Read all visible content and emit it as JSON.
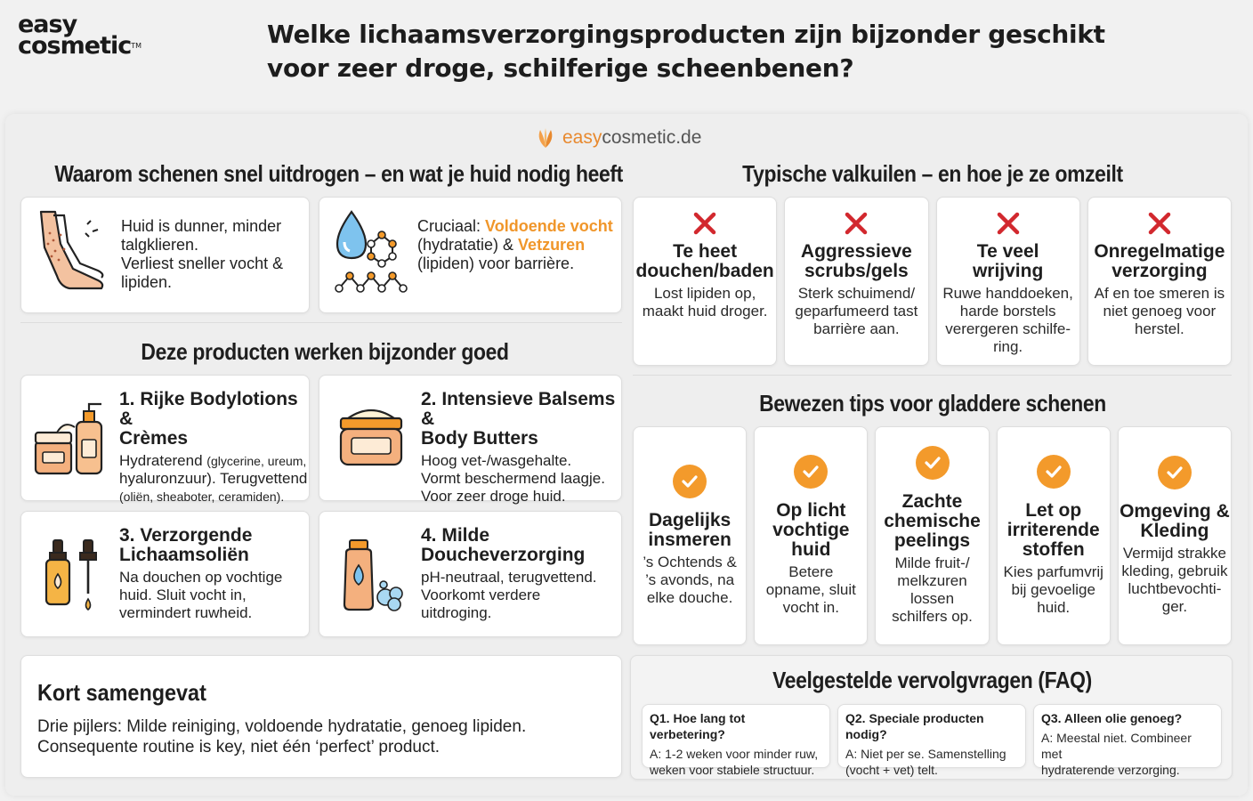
{
  "logo": {
    "line1": "easy",
    "line2": "cosmetic",
    "tm": "TM"
  },
  "title": {
    "line1": "Welke lichaamsverzorgingsproducten zijn bijzonder geschikt",
    "line2": "voor zeer droge, schilferige scheenbenen?"
  },
  "brand": {
    "prefix": "easy",
    "suffix": "cosmetic.de"
  },
  "why": {
    "heading": "Waarom schenen snel uitdrogen – en wat je huid nodig heeft",
    "card1": {
      "icon": "legs-icon",
      "line1": "Huid is dunner, minder",
      "line2": "talgklieren.",
      "line3": "Verliest sneller vocht &",
      "line4": "lipiden."
    },
    "card2": {
      "icon": "droplet-molecule-icon",
      "pre": "Cruciaal: ",
      "hl1": "Voldoende vocht",
      "mid": "(hydratatie) & ",
      "hl2": "Vetzuren",
      "post": "(lipiden) voor barrière."
    }
  },
  "products": {
    "heading": "Deze producten werken bijzonder goed",
    "items": [
      {
        "icon": "lotion-jars-icon",
        "title1": "1. Rijke Bodylotions &",
        "title2": "Crèmes",
        "body1a": "Hydraterend ",
        "body1b": "(glycerine, ureum,",
        "body2": "hyaluronzuur). Terugvettend",
        "body3": "(oliën, sheaboter, ceramiden)."
      },
      {
        "icon": "balm-jar-icon",
        "title1": "2. Intensieve Balsems &",
        "title2": "Body Butters",
        "body1": "Hoog vet-/wasgehalte.",
        "body2": "Vormt beschermend laagje.",
        "body3": "Voor zeer droge huid."
      },
      {
        "icon": "oil-bottles-icon",
        "title1": "3. Verzorgende",
        "title2": "Lichaamsoliën",
        "body1": "Na douchen op vochtige",
        "body2": "huid. Sluit vocht in,",
        "body3": "vermindert ruwheid."
      },
      {
        "icon": "shower-gel-icon",
        "title1": "4. Milde",
        "title2": "Doucheverzorging",
        "body1": "pH-neutraal, terugvettend.",
        "body2": "Voorkomt verdere",
        "body3": "uitdroging."
      }
    ]
  },
  "summary": {
    "heading": "Kort samengevat",
    "line1": "Drie pijlers: Milde reiniging, voldoende hydratatie, genoeg lipiden.",
    "line2": "Consequente routine is key, niet één ‘perfect’ product."
  },
  "pitfalls": {
    "heading": "Typische valkuilen – en hoe je ze omzeilt",
    "items": [
      {
        "t1": "Te heet",
        "t2": "douchen/baden",
        "b1": "Lost lipiden op,",
        "b2": "maakt huid droger.",
        "b3": "",
        "b4": ""
      },
      {
        "t1": "Aggressieve",
        "t2": "scrubs/gels",
        "b1": "Sterk schuimend/",
        "b2": "geparfumeerd tast",
        "b3": "barrière aan.",
        "b4": ""
      },
      {
        "t1": "Te veel",
        "t2": "wrijving",
        "b1": "Ruwe handdoeken,",
        "b2": "harde borstels",
        "b3": "verergeren schilfe-",
        "b4": "ring."
      },
      {
        "t1": "Onregelmatige",
        "t2": "verzorging",
        "b1": "Af en toe smeren is",
        "b2": "niet genoeg voor",
        "b3": "herstel.",
        "b4": ""
      }
    ]
  },
  "tips": {
    "heading": "Bewezen tips voor gladdere schenen",
    "items": [
      {
        "t": [
          "Dagelijks",
          "insmeren"
        ],
        "b": [
          "’s Ochtends &",
          "’s avonds, na",
          "elke douche."
        ]
      },
      {
        "t": [
          "Op licht",
          "vochtige",
          "huid"
        ],
        "b": [
          "Betere",
          "opname, sluit",
          "vocht in."
        ]
      },
      {
        "t": [
          "Zachte",
          "chemische",
          "peelings"
        ],
        "b": [
          "Milde fruit-/",
          "melkzuren",
          "lossen",
          "schilfers op."
        ]
      },
      {
        "t": [
          "Let op",
          "irriterende",
          "stoffen"
        ],
        "b": [
          "Kies parfumvrij",
          "bij gevoelige",
          "huid."
        ]
      },
      {
        "t": [
          "Omgeving &",
          "Kleding"
        ],
        "b": [
          "Vermijd strakke",
          "kleding, gebruik",
          "luchtbevochti-",
          "ger."
        ]
      }
    ]
  },
  "faq": {
    "heading": "Veelgestelde vervolgvragen (FAQ)",
    "items": [
      {
        "q": "Q1. Hoe lang tot verbetering?",
        "a1": "A: 1-2 weken voor minder ruw,",
        "a2": "weken voor stabiele structuur."
      },
      {
        "q": "Q2. Speciale producten nodig?",
        "a1": "A: Niet per se. Samenstelling",
        "a2": "(vocht + vet) telt."
      },
      {
        "q": "Q3. Alleen olie genoeg?",
        "a1": "A: Meestal niet. Combineer met",
        "a2": "hydraterende verzorging."
      }
    ]
  },
  "colors": {
    "accent": "#f0962a",
    "check": "#f39a2b",
    "cross": "#d2282e",
    "card": "#ffffff",
    "panel": "#eeeeee"
  }
}
